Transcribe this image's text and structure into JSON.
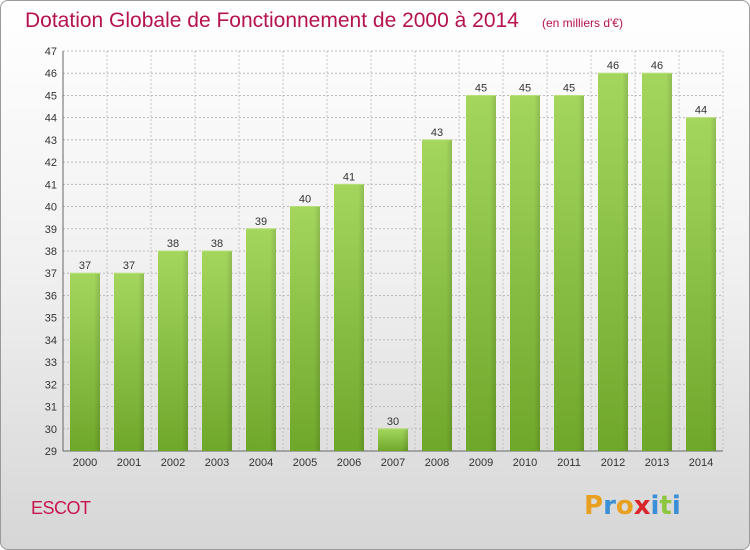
{
  "chart_data": {
    "type": "bar",
    "title": "Dotation Globale de Fonctionnement de 2000 à 2014",
    "subtitle": "(en milliers d'€)",
    "categories": [
      "2000",
      "2001",
      "2002",
      "2003",
      "2004",
      "2005",
      "2006",
      "2007",
      "2008",
      "2009",
      "2010",
      "2011",
      "2012",
      "2013",
      "2014"
    ],
    "values": [
      37,
      37,
      38,
      38,
      39,
      40,
      41,
      30,
      43,
      45,
      45,
      45,
      46,
      46,
      44
    ],
    "ylim": [
      29,
      47
    ],
    "yticks": [
      29,
      30,
      31,
      32,
      33,
      34,
      35,
      36,
      37,
      38,
      39,
      40,
      41,
      42,
      43,
      44,
      45,
      46,
      47
    ],
    "grid": true,
    "bar_color": "#8dc63f"
  },
  "footer": {
    "place": "ESCOT",
    "logo": [
      "P",
      "r",
      "o",
      "x",
      "i",
      "t",
      "i"
    ],
    "logo_colors": [
      "#e8a020",
      "#3a8fd6",
      "#e8a020",
      "#d9262c",
      "#3a8fd6",
      "#8dc63f",
      "#3a8fd6"
    ]
  }
}
